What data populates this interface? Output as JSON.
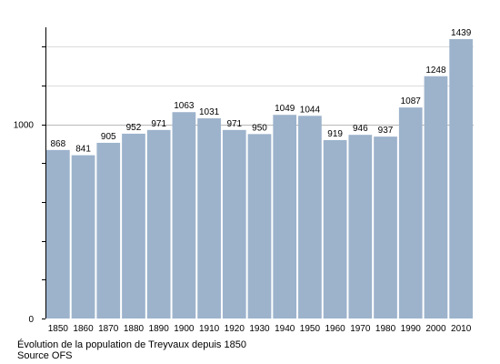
{
  "chart_data": {
    "type": "bar",
    "title": "",
    "xlabel": "",
    "ylabel": "",
    "categories": [
      "1850",
      "1860",
      "1870",
      "1880",
      "1890",
      "1900",
      "1910",
      "1920",
      "1930",
      "1940",
      "1950",
      "1960",
      "1970",
      "1980",
      "1990",
      "2000",
      "2010"
    ],
    "values": [
      868,
      841,
      905,
      952,
      971,
      1063,
      1031,
      971,
      950,
      1049,
      1044,
      919,
      946,
      937,
      1087,
      1248,
      1439
    ],
    "ylim": [
      0,
      1500
    ],
    "y_ticks_labeled": [
      0,
      1000
    ],
    "y_gridlines": [
      1000,
      1200,
      1400
    ],
    "bar_color": "#9db3cc",
    "grid": true,
    "data_labels": true
  },
  "caption": {
    "title": "Évolution de la population de Treyvaux depuis 1850",
    "source": "Source OFS"
  }
}
